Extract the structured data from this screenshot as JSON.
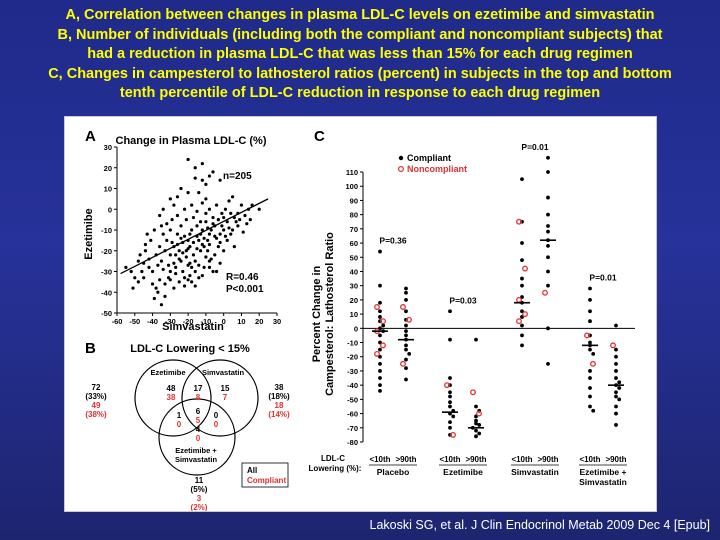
{
  "slide": {
    "title_lines": [
      "A, Correlation between changes in plasma LDL-C levels on ezetimibe and simvastatin",
      "B, Number of individuals (including both the compliant and noncompliant subjects) that",
      "had a reduction in plasma LDL-C that was less than 15% for each drug regimen",
      "C, Changes in campesterol to lathosterol ratios (percent) in subjects in the top and bottom",
      "tenth percentile of LDL-C reduction in response to each drug regimen"
    ],
    "citation": "Lakoski SG, et al. J Clin Endocrinol Metab 2009 Dec 4 [Epub]",
    "colors": {
      "background": "#1f2a8a",
      "title": "#ffff00",
      "compliant": "#000000",
      "noncompliant": "#e03030"
    }
  },
  "chart_data": [
    {
      "panel": "A",
      "type": "scatter",
      "title": "Change in Plasma LDL-C (%)",
      "xlabel": "Simvastatin",
      "ylabel": "Ezetimibe",
      "xlim": [
        -60,
        30
      ],
      "ylim": [
        -50,
        30
      ],
      "xticks": [
        -60,
        -50,
        -40,
        -30,
        -20,
        -10,
        0,
        10,
        20,
        30
      ],
      "yticks": [
        -50,
        -40,
        -30,
        -20,
        -10,
        0,
        10,
        20,
        30
      ],
      "annotations": [
        "n=205",
        "R=0.46",
        "P<0.001"
      ],
      "regression_line": [
        [
          -58,
          -31
        ],
        [
          25,
          5
        ]
      ],
      "points": [
        [
          -28,
          -18
        ],
        [
          -25,
          -20
        ],
        [
          -22,
          -13
        ],
        [
          -30,
          -22
        ],
        [
          -35,
          -25
        ],
        [
          -20,
          -15
        ],
        [
          -18,
          -10
        ],
        [
          -15,
          -8
        ],
        [
          -32,
          -15
        ],
        [
          -40,
          -30
        ],
        [
          -26,
          -12
        ],
        [
          -24,
          -25
        ],
        [
          -21,
          -20
        ],
        [
          -19,
          -18
        ],
        [
          -17,
          -22
        ],
        [
          -14,
          -15
        ],
        [
          -12,
          -10
        ],
        [
          -10,
          -6
        ],
        [
          -8,
          -12
        ],
        [
          -6,
          -4
        ],
        [
          -30,
          -10
        ],
        [
          -33,
          -20
        ],
        [
          -36,
          -18
        ],
        [
          -38,
          -22
        ],
        [
          -42,
          -28
        ],
        [
          -45,
          -26
        ],
        [
          -48,
          -35
        ],
        [
          -50,
          -33
        ],
        [
          -27,
          -28
        ],
        [
          -23,
          -30
        ],
        [
          -20,
          -27
        ],
        [
          -16,
          -25
        ],
        [
          -13,
          -20
        ],
        [
          -11,
          -18
        ],
        [
          -9,
          -15
        ],
        [
          -7,
          -10
        ],
        [
          -5,
          -8
        ],
        [
          -3,
          -5
        ],
        [
          -2,
          -12
        ],
        [
          0,
          -10
        ],
        [
          2,
          -6
        ],
        [
          4,
          -2
        ],
        [
          6,
          -4
        ],
        [
          -29,
          -5
        ],
        [
          -26,
          -3
        ],
        [
          -22,
          0
        ],
        [
          -18,
          2
        ],
        [
          -15,
          -1
        ],
        [
          -12,
          3
        ],
        [
          -10,
          5
        ],
        [
          -34,
          -12
        ],
        [
          -31,
          -33
        ],
        [
          -28,
          -38
        ],
        [
          -25,
          -35
        ],
        [
          -22,
          -33
        ],
        [
          -19,
          -32
        ],
        [
          -16,
          -30
        ],
        [
          -37,
          -40
        ],
        [
          -41,
          -15
        ],
        [
          -44,
          -20
        ],
        [
          -47,
          -22
        ],
        [
          -52,
          -30
        ],
        [
          -55,
          -28
        ],
        [
          -14,
          8
        ],
        [
          -8,
          0
        ],
        [
          -4,
          2
        ],
        [
          -1,
          -2
        ],
        [
          1,
          0
        ],
        [
          3,
          4
        ],
        [
          5,
          6
        ],
        [
          8,
          -2
        ],
        [
          10,
          2
        ],
        [
          12,
          -3
        ],
        [
          14,
          0
        ],
        [
          16,
          2
        ],
        [
          20,
          0
        ],
        [
          -24,
          -8
        ],
        [
          -21,
          -5
        ],
        [
          -17,
          -4
        ],
        [
          -13,
          -6
        ],
        [
          -10,
          -2
        ],
        [
          -35,
          -8
        ],
        [
          -39,
          -10
        ],
        [
          -43,
          -12
        ],
        [
          -30,
          -30
        ],
        [
          -27,
          -31
        ],
        [
          -33,
          -36
        ],
        [
          -36,
          -34
        ],
        [
          -24,
          10
        ],
        [
          -20,
          8
        ],
        [
          -16,
          15
        ],
        [
          -12,
          14
        ],
        [
          -10,
          12
        ],
        [
          -6,
          18
        ],
        [
          -30,
          5
        ],
        [
          -34,
          0
        ],
        [
          -28,
          2
        ],
        [
          -26,
          6
        ],
        [
          -18,
          -35
        ],
        [
          -14,
          -33
        ],
        [
          -11,
          -28
        ],
        [
          -8,
          -25
        ],
        [
          -5,
          -22
        ],
        [
          -3,
          -18
        ],
        [
          -6,
          -30
        ],
        [
          -2,
          -26
        ],
        [
          0,
          -20
        ],
        [
          2,
          -15
        ],
        [
          4,
          -12
        ],
        [
          6,
          -18
        ],
        [
          8,
          -8
        ],
        [
          -45,
          -33
        ],
        [
          -40,
          -36
        ],
        [
          -38,
          -38
        ],
        [
          -33,
          -42
        ],
        [
          -29,
          -16
        ],
        [
          -23,
          -16
        ],
        [
          -19,
          -12
        ],
        [
          -17,
          -16
        ],
        [
          -13,
          -12
        ],
        [
          -9,
          -20
        ],
        [
          -7,
          -24
        ],
        [
          -4,
          -14
        ],
        [
          -1,
          -8
        ],
        [
          -31,
          -27
        ],
        [
          -34,
          -29
        ],
        [
          -37,
          -27
        ],
        [
          -42,
          -24
        ],
        [
          -46,
          -30
        ],
        [
          -25,
          -24
        ],
        [
          -21,
          -23
        ],
        [
          -15,
          -19
        ],
        [
          -11,
          -14
        ],
        [
          -9,
          -9
        ],
        [
          -6,
          -7
        ],
        [
          0,
          -4
        ],
        [
          3,
          -9
        ],
        [
          7,
          -6
        ],
        [
          11,
          -11
        ],
        [
          -20,
          -34
        ],
        [
          -16,
          -37
        ],
        [
          -12,
          -32
        ],
        [
          -22,
          -37
        ],
        [
          -27,
          -22
        ],
        [
          -23,
          -21
        ],
        [
          -19,
          -26
        ],
        [
          -14,
          -27
        ],
        [
          -10,
          -23
        ],
        [
          -32,
          -7
        ],
        [
          -36,
          -3
        ],
        [
          -26,
          -17
        ],
        [
          -24,
          -14
        ],
        [
          -20,
          -19
        ],
        [
          -15,
          -13
        ],
        [
          -12,
          -17
        ],
        [
          -8,
          -17
        ],
        [
          -5,
          -13
        ],
        [
          -2,
          -16
        ],
        [
          1,
          -13
        ],
        [
          5,
          -10
        ],
        [
          9,
          -5
        ],
        [
          13,
          -7
        ],
        [
          15,
          -5
        ],
        [
          -44,
          -17
        ],
        [
          -48,
          -25
        ],
        [
          -51,
          -38
        ],
        [
          -39,
          -43
        ],
        [
          -35,
          -46
        ],
        [
          -16,
          20
        ],
        [
          -12,
          22
        ],
        [
          -8,
          16
        ],
        [
          -20,
          24
        ],
        [
          -2,
          14
        ],
        [
          -28,
          -26
        ],
        [
          -30,
          -34
        ],
        [
          -18,
          -28
        ],
        [
          -8,
          -28
        ],
        [
          -4,
          -30
        ]
      ]
    },
    {
      "panel": "B",
      "type": "table",
      "title": "LDL-C Lowering < 15%",
      "circle_labels": [
        "Ezetimibe",
        "Simvastatin",
        "Ezetimibe + Simvastatin"
      ],
      "legend": [
        "All",
        "Compliant"
      ],
      "regions": [
        {
          "region": "outside-left",
          "all": "72",
          "all_pct": "(33%)",
          "compliant": "49",
          "compliant_pct": "(38%)"
        },
        {
          "region": "outside-right",
          "all": "38",
          "all_pct": "(18%)",
          "compliant": "18",
          "compliant_pct": "(14%)"
        },
        {
          "region": "outside-bottom",
          "all": "11",
          "all_pct": "(5%)",
          "compliant": "3",
          "compliant_pct": "(2%)"
        },
        {
          "region": "ezetimibe-only",
          "all": "48",
          "compliant": "38"
        },
        {
          "region": "ezetimibe-simvastatin",
          "all": "17",
          "compliant": "8"
        },
        {
          "region": "simvastatin-only",
          "all": "15",
          "compliant": "7"
        },
        {
          "region": "ezetimibe-combo",
          "all": "1",
          "compliant": "0"
        },
        {
          "region": "center",
          "all": "6",
          "compliant": "5"
        },
        {
          "region": "simvastatin-combo",
          "all": "0",
          "compliant": "0"
        },
        {
          "region": "combo-only",
          "all": "4",
          "compliant": "0"
        }
      ]
    },
    {
      "panel": "C",
      "type": "scatter",
      "ylabel": "Percent Change in Campesterol: Lathosterol Ratio",
      "ylim": [
        -80,
        110
      ],
      "yticks": [
        -80,
        -70,
        -60,
        -50,
        -40,
        -30,
        -20,
        -10,
        0,
        10,
        20,
        30,
        40,
        50,
        60,
        70,
        80,
        90,
        100,
        110
      ],
      "legend": [
        "Compliant",
        "Noncompliant"
      ],
      "xlabel_prefix": "LDL-C Lowering (%):",
      "groups": [
        {
          "name": "Placebo",
          "p_value": "P=0.36",
          "subgroups": [
            {
              "label": "<10th",
              "median": -2,
              "compliant": [
                54,
                30,
                18,
                12,
                8,
                5,
                2,
                0,
                -2,
                -5,
                -10,
                -15,
                -20,
                -25,
                -30,
                -35,
                -40,
                -44
              ],
              "noncompliant": [
                15,
                5,
                -2,
                -12,
                -18
              ]
            },
            {
              "label": ">90th",
              "median": -8,
              "compliant": [
                28,
                25,
                20,
                12,
                6,
                2,
                -2,
                -5,
                -8,
                -12,
                -15,
                -18,
                -22,
                -28,
                -36
              ],
              "noncompliant": [
                15,
                6,
                -25
              ]
            }
          ]
        },
        {
          "name": "Ezetimibe",
          "p_value": "P=0.03",
          "subgroups": [
            {
              "label": "<10th",
              "median": -59,
              "compliant": [
                12,
                -8,
                -35,
                -40,
                -45,
                -48,
                -52,
                -55,
                -58,
                -60,
                -62,
                -66,
                -70,
                -75
              ],
              "noncompliant": [
                -40,
                -75
              ]
            },
            {
              "label": ">90th",
              "median": -70,
              "compliant": [
                -8,
                -55,
                -58,
                -62,
                -65,
                -67,
                -68,
                -70,
                -72,
                -74,
                -76
              ],
              "noncompliant": [
                -45,
                -60
              ]
            }
          ]
        },
        {
          "name": "Simvastatin",
          "p_value": "P=0.01",
          "subgroups": [
            {
              "label": "<10th",
              "median": 18,
              "compliant": [
                105,
                75,
                60,
                48,
                35,
                30,
                22,
                18,
                12,
                8,
                2,
                -5,
                -12
              ],
              "noncompliant": [
                75,
                42,
                20,
                10,
                5
              ]
            },
            {
              "label": ">90th",
              "median": 62,
              "compliant": [
                120,
                110,
                92,
                80,
                72,
                68,
                62,
                58,
                50,
                40,
                30,
                0,
                -25
              ],
              "noncompliant": [
                25
              ]
            }
          ]
        },
        {
          "name": "Ezetimibe + Simvastatin",
          "p_value": "P=0.01",
          "subgroups": [
            {
              "label": "<10th",
              "median": -12,
              "compliant": [
                28,
                20,
                12,
                5,
                -5,
                -10,
                -12,
                -15,
                -18,
                -30,
                -35,
                -42,
                -48,
                -55,
                -58
              ],
              "noncompliant": [
                -5,
                -25
              ]
            },
            {
              "label": ">90th",
              "median": -40,
              "compliant": [
                2,
                -15,
                -20,
                -25,
                -30,
                -35,
                -38,
                -40,
                -42,
                -45,
                -48,
                -50,
                -55,
                -60,
                -68
              ],
              "noncompliant": [
                -12
              ]
            }
          ]
        }
      ]
    }
  ]
}
